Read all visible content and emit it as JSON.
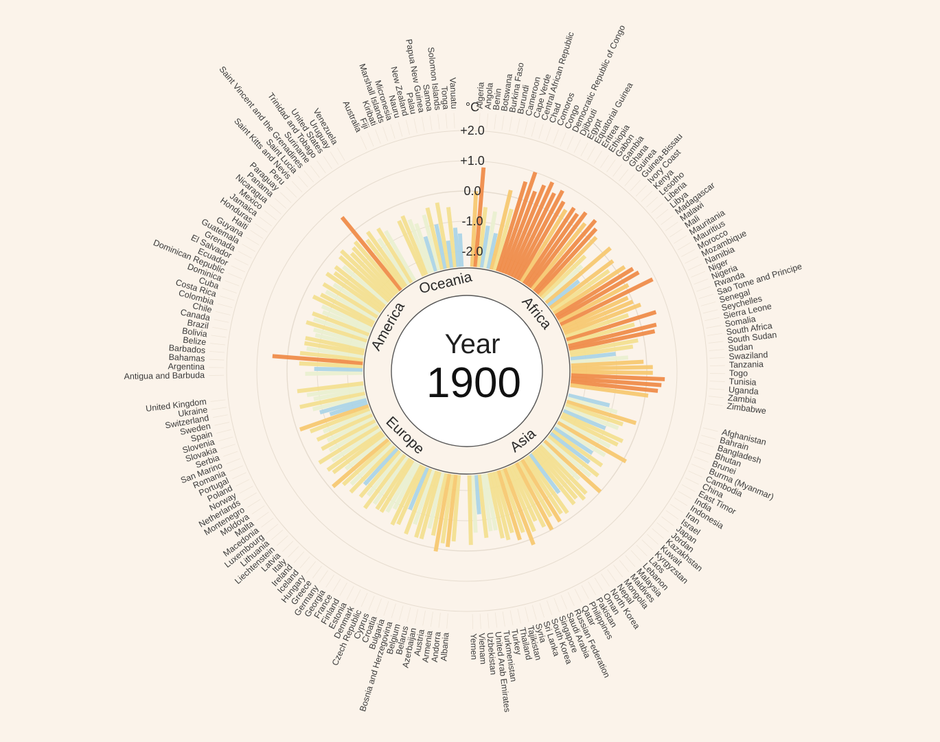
{
  "chart_data": {
    "type": "bar",
    "layout": "radial",
    "year_label": "Year",
    "year_value": "1900",
    "unit": "°C",
    "scale_ticks": [
      "+2.0",
      "+1.0",
      "0.0",
      "-1.0",
      "-2.0"
    ],
    "ylim": [
      -2.0,
      2.0
    ],
    "colors": {
      "background": "#fbf3ea",
      "cold": "#a9d4e6",
      "neutral": "#e9f0cf",
      "mild_warm": "#f3e08e",
      "warm": "#f6c86e",
      "hot": "#ef8a45"
    },
    "regions": [
      {
        "name": "Africa",
        "countries": [
          "Algeria",
          "Angola",
          "Benin",
          "Botswana",
          "Burkina Faso",
          "Burundi",
          "Cameroon",
          "Cape Verde",
          "Central African Republic",
          "Chad",
          "Comoros",
          "Congo",
          "Democratic Republic of Congo",
          "Djibouti",
          "Egypt",
          "Equatorial Guinea",
          "Eritrea",
          "Ethiopia",
          "Gabon",
          "Gambia",
          "Ghana",
          "Guinea",
          "Guinea-Bissau",
          "Ivory Coast",
          "Kenya",
          "Lesotho",
          "Liberia",
          "Libya",
          "Madagascar",
          "Malawi",
          "Mali",
          "Mauritania",
          "Mauritius",
          "Morocco",
          "Mozambique",
          "Namibia",
          "Niger",
          "Nigeria",
          "Rwanda",
          "Sao Tome and Principe",
          "Senegal",
          "Seychelles",
          "Sierra Leone",
          "Somalia",
          "South Africa",
          "South Sudan",
          "Sudan",
          "Swaziland",
          "Tanzania",
          "Togo",
          "Tunisia",
          "Uganda",
          "Zambia",
          "Zimbabwe"
        ],
        "values": [
          0.0,
          0.8,
          -0.5,
          -1.1,
          -0.6,
          -1.3,
          0.2,
          -0.4,
          0.6,
          1.0,
          0.4,
          0.7,
          0.9,
          0.6,
          0.8,
          0.5,
          0.3,
          0.5,
          0.4,
          0.6,
          0.3,
          0.6,
          0.4,
          0.2,
          -0.5,
          -0.8,
          0.3,
          -1.2,
          0.1,
          -0.2,
          0.3,
          0.5,
          0.6,
          0.1,
          0.9,
          -0.1,
          0.0,
          0.2,
          -0.3,
          0.6,
          -0.2,
          0.5,
          0.4,
          -0.2,
          -0.4,
          -1.0,
          -0.6,
          -0.1,
          0.2,
          0.2,
          0.6,
          0.5,
          0.4,
          0.1
        ]
      },
      {
        "name": "Asia",
        "countries": [
          "Afghanistan",
          "Bahrain",
          "Bangladesh",
          "Bhutan",
          "Brunei",
          "Burma (Myanmar)",
          "Cambodia",
          "China",
          "East Timor",
          "India",
          "Indonesia",
          "Iran",
          "Israel",
          "Japan",
          "Jordan",
          "Kazakhstan",
          "Kuwait",
          "Kyrgyzstan",
          "Laos",
          "Lebanon",
          "Malaysia",
          "Maldives",
          "Mongolia",
          "Nepal",
          "North Korea",
          "Oman",
          "Pakistan",
          "Philippines",
          "Qatar",
          "Russian Federation",
          "Saudi Arabia",
          "Singapore",
          "South Korea",
          "Sri Lanka",
          "Syria",
          "Tajikistan",
          "Thailand",
          "Turkey",
          "Turkmenistan",
          "United Arab Emirates",
          "Uzbekistan",
          "Vietnam",
          "Yemen"
        ],
        "values": [
          -1.1,
          -0.8,
          -0.1,
          -0.5,
          -0.6,
          -1.0,
          -0.3,
          -0.4,
          -0.6,
          0.1,
          -0.6,
          -1.0,
          -0.5,
          -0.9,
          -0.4,
          -0.6,
          0.0,
          -0.8,
          -0.3,
          -0.2,
          -0.4,
          -0.3,
          -0.9,
          -0.2,
          -0.3,
          -0.1,
          -0.4,
          0.0,
          -0.2,
          -0.5,
          -0.2,
          0.2,
          -0.3,
          -0.1,
          -0.4,
          -0.2,
          -0.3,
          -0.6,
          -0.6,
          -0.4,
          -1.2,
          -0.6,
          -0.2
        ]
      },
      {
        "name": "Europe",
        "countries": [
          "Albania",
          "Andorra",
          "Armenia",
          "Austria",
          "Azerbaijan",
          "Belarus",
          "Belgium",
          "Bosnia and Herzegovina",
          "Bulgaria",
          "Croatia",
          "Cyprus",
          "Czech Republic",
          "Denmark",
          "Estonia",
          "Finland",
          "France",
          "Georgia",
          "Germany",
          "Greece",
          "Hungary",
          "Iceland",
          "Ireland",
          "Italy",
          "Latvia",
          "Liechtenstein",
          "Lithuania",
          "Luxembourg",
          "Macedonia",
          "Malta",
          "Moldova",
          "Montenegro",
          "Netherlands",
          "Norway",
          "Poland",
          "Portugal",
          "Romania",
          "San Marino",
          "Serbia",
          "Slovakia",
          "Slovenia",
          "Spain",
          "Sweden",
          "Switzerland",
          "Ukraine",
          "United Kingdom"
        ],
        "values": [
          -0.3,
          -0.1,
          -0.2,
          0.1,
          -0.4,
          -0.6,
          -0.2,
          -0.2,
          -0.6,
          -0.2,
          -1.0,
          -0.4,
          -0.3,
          -0.8,
          -0.6,
          -0.5,
          -0.5,
          -0.6,
          -0.3,
          -0.7,
          -0.5,
          -0.9,
          -0.4,
          -0.6,
          -0.4,
          -0.1,
          -0.8,
          -0.4,
          -0.3,
          -0.6,
          -0.2,
          -0.7,
          -0.5,
          -0.8,
          -0.5,
          -0.8,
          -0.4,
          -0.1,
          -1.2,
          -0.9,
          -0.7,
          -0.3,
          -0.8,
          -0.6,
          -0.3
        ]
      },
      {
        "name": "America",
        "countries": [
          "Antigua and Barbuda",
          "Argentina",
          "Bahamas",
          "Barbados",
          "Belize",
          "Bolivia",
          "Brazil",
          "Canada",
          "Chile",
          "Colombia",
          "Costa Rica",
          "Cuba",
          "Dominica",
          "Dominican Republic",
          "Ecuador",
          "El Salvador",
          "Grenada",
          "Guatemala",
          "Guyana",
          "Haiti",
          "Honduras",
          "Jamaica",
          "Mexico",
          "Nicaragua",
          "Panama",
          "Paraguay",
          "Peru",
          "Saint Kitts and Nevis",
          "Saint Lucia",
          "Saint Vincent and the Grenadines",
          "Suriname",
          "Trinidad and Tobago",
          "United States",
          "Uruguay",
          "Venezuela"
        ],
        "values": [
          -0.6,
          -0.9,
          -0.4,
          0.5,
          -0.4,
          -0.6,
          -0.5,
          -0.5,
          -0.8,
          -0.7,
          -0.4,
          -0.6,
          -0.5,
          -0.8,
          -0.7,
          -0.3,
          -0.5,
          -0.6,
          -0.4,
          -0.7,
          -0.3,
          -0.5,
          -0.4,
          -0.6,
          -0.3,
          -0.2,
          -0.5,
          -0.4,
          -0.3,
          0.6,
          -0.5,
          -0.3,
          -0.7,
          -0.4,
          -0.6
        ]
      },
      {
        "name": "Oceania",
        "countries": [
          "Australia",
          "Fiji",
          "Kiribati",
          "Marshall Islands",
          "Micronesia",
          "Nauru",
          "New Zealand",
          "Palau",
          "Papua New Guinea",
          "Samoa",
          "Solomon Islands",
          "Tonga",
          "Vanuatu"
        ],
        "values": [
          -0.5,
          -0.4,
          -0.6,
          -0.8,
          -1.3,
          -0.6,
          -0.4,
          -1.0,
          -0.3,
          -1.6,
          -0.5,
          -1.2,
          -1.4
        ]
      }
    ]
  }
}
